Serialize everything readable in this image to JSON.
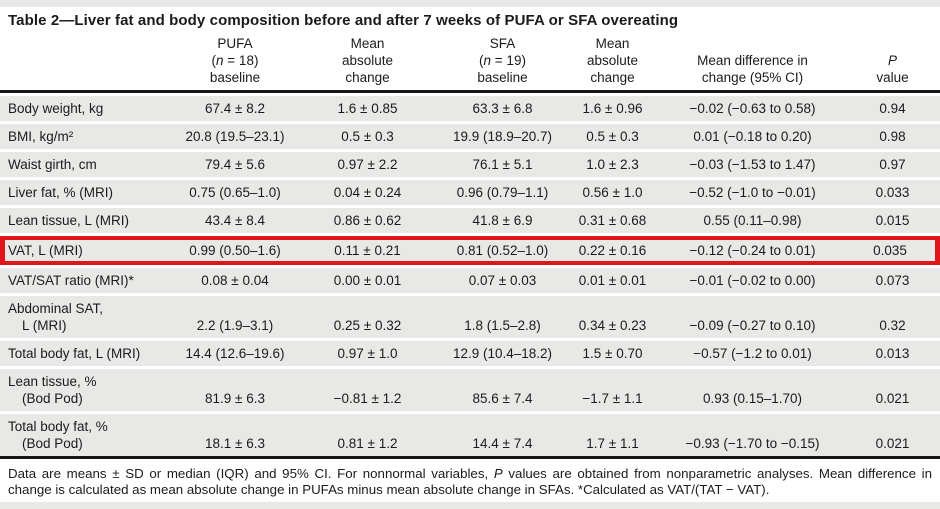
{
  "page": {
    "background": "#ffffff",
    "margin_band_color": "#e8e8e6",
    "row_band_color": "#e8e8e6",
    "rule_color": "#161616",
    "highlight_box_color": "#e2151b"
  },
  "table": {
    "title": "Table 2—Liver fat and body composition before and after 7 weeks of PUFA or SFA overeating",
    "header": {
      "label_col": "",
      "pufa_baseline_html": "PUFA<br>(<i>n</i> = 18)<br>baseline",
      "pufa_change_html": "Mean<br>absolute<br>change",
      "sfa_baseline_html": "SFA<br>(<i>n</i> = 19)<br>baseline",
      "sfa_change_html": "Mean<br>absolute<br>change",
      "mean_difference_html": "Mean difference in<br>change (95% CI)",
      "p_value_html": "<i>P</i><br>value"
    },
    "rows": [
      {
        "label": "Body weight, kg",
        "values": [
          "67.4 ± 8.2",
          "1.6 ± 0.85",
          "63.3 ± 6.8",
          "1.6 ± 0.96",
          "−0.02 (−0.63 to 0.58)",
          "0.94"
        ],
        "highlighted": false
      },
      {
        "label": "BMI, kg/m²",
        "values": [
          "20.8 (19.5–23.1)",
          "0.5 ± 0.3",
          "19.9 (18.9–20.7)",
          "0.5 ± 0.3",
          "0.01 (−0.18 to 0.20)",
          "0.98"
        ],
        "highlighted": false
      },
      {
        "label": "Waist girth, cm",
        "values": [
          "79.4 ± 5.6",
          "0.97 ± 2.2",
          "76.1 ± 5.1",
          "1.0 ± 2.3",
          "−0.03 (−1.53 to 1.47)",
          "0.97"
        ],
        "highlighted": false
      },
      {
        "label": "Liver fat, % (MRI)",
        "values": [
          "0.75 (0.65–1.0)",
          "0.04 ± 0.24",
          "0.96 (0.79–1.1)",
          "0.56 ± 1.0",
          "−0.52 (−1.0 to −0.01)",
          "0.033"
        ],
        "highlighted": false
      },
      {
        "label": "Lean tissue, L (MRI)",
        "values": [
          "43.4 ± 8.4",
          "0.86 ± 0.62",
          "41.8 ± 6.9",
          "0.31 ± 0.68",
          "0.55 (0.11–0.98)",
          "0.015"
        ],
        "highlighted": false
      },
      {
        "label": "VAT, L (MRI)",
        "values": [
          "0.99 (0.50–1.6)",
          "0.11 ± 0.21",
          "0.81 (0.52–1.0)",
          "0.22 ± 0.16",
          "−0.12 (−0.24 to 0.01)",
          "0.035"
        ],
        "highlighted": true
      },
      {
        "label": "VAT/SAT ratio (MRI)*",
        "values": [
          "0.08 ± 0.04",
          "0.00 ± 0.01",
          "0.07 ± 0.03",
          "0.01 ± 0.01",
          "−0.01 (−0.02 to 0.00)",
          "0.073"
        ],
        "highlighted": false
      },
      {
        "label": "Abdominal SAT,\nL (MRI)",
        "values": [
          "2.2 (1.9–3.1)",
          "0.25 ± 0.32",
          "1.8 (1.5–2.8)",
          "0.34 ± 0.23",
          "−0.09 (−0.27 to 0.10)",
          "0.32"
        ],
        "highlighted": false
      },
      {
        "label": "Total body fat, L (MRI)",
        "values": [
          "14.4 (12.6–19.6)",
          "0.97 ± 1.0",
          "12.9 (10.4–18.2)",
          "1.5 ± 0.70",
          "−0.57 (−1.2 to 0.01)",
          "0.013"
        ],
        "highlighted": false
      },
      {
        "label": "Lean tissue, %\n(Bod Pod)",
        "values": [
          "81.9 ± 6.3",
          "−0.81 ± 1.2",
          "85.6 ± 7.4",
          "−1.7 ± 1.1",
          "0.93 (0.15–1.70)",
          "0.021"
        ],
        "highlighted": false
      },
      {
        "label": "Total body fat, %\n(Bod Pod)",
        "values": [
          "18.1 ± 6.3",
          "0.81 ± 1.2",
          "14.4 ± 7.4",
          "1.7 ± 1.1",
          "−0.93 (−1.70 to −0.15)",
          "0.021"
        ],
        "highlighted": false
      }
    ],
    "footnote_html": "Data are means ± SD or median (IQR) and 95% CI. For nonnormal variables, <i>P</i> values are obtained from nonparametric analyses. Mean difference in change is calculated as mean absolute change in PUFAs minus mean absolute change in SFAs. *Calculated as VAT/(TAT − VAT)."
  }
}
